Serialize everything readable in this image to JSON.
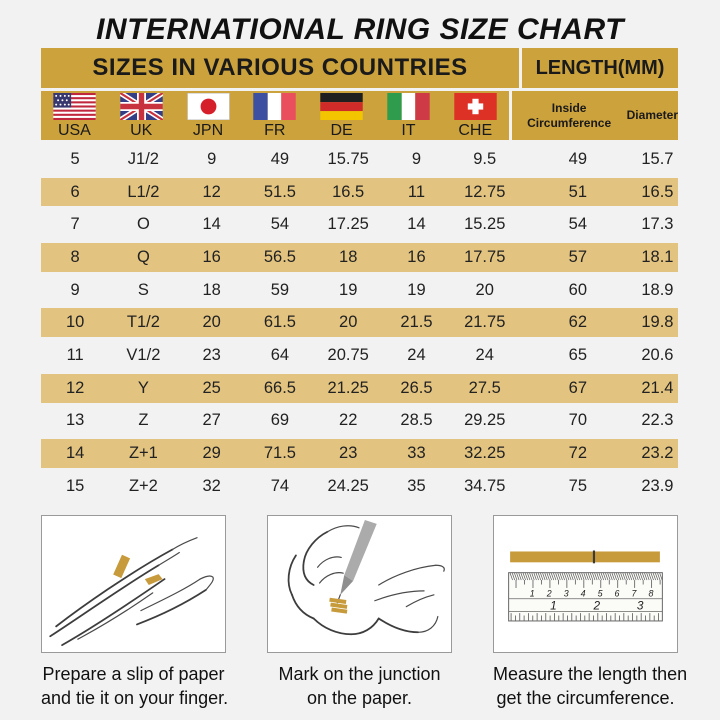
{
  "title": "INTERNATIONAL RING SIZE CHART",
  "colors": {
    "header_gold": "#CCA23D",
    "row_highlight": "#E3C380",
    "background": "#F2F2F2",
    "paper_strip": "#C79B3B"
  },
  "header": {
    "left": "SIZES IN VARIOUS COUNTRIES",
    "right": "LENGTH(MM)"
  },
  "country_columns": [
    {
      "code": "USA",
      "flag": "usa-flag-icon"
    },
    {
      "code": "UK",
      "flag": "uk-flag-icon"
    },
    {
      "code": "JPN",
      "flag": "japan-flag-icon"
    },
    {
      "code": "FR",
      "flag": "france-flag-icon"
    },
    {
      "code": "DE",
      "flag": "germany-flag-icon"
    },
    {
      "code": "IT",
      "flag": "italy-flag-icon"
    },
    {
      "code": "CHE",
      "flag": "switzerland-flag-icon"
    }
  ],
  "length_columns": [
    "Inside Circumference",
    "Diameter"
  ],
  "chart_data": {
    "type": "table",
    "title": "INTERNATIONAL RING SIZE CHART",
    "columns": [
      "USA",
      "UK",
      "JPN",
      "FR",
      "DE",
      "IT",
      "CHE",
      "Inside Circumference (mm)",
      "Diameter (mm)"
    ],
    "rows": [
      [
        "5",
        "J1/2",
        "9",
        "49",
        "15.75",
        "9",
        "9.5",
        "49",
        "15.7"
      ],
      [
        "6",
        "L1/2",
        "12",
        "51.5",
        "16.5",
        "11",
        "12.75",
        "51",
        "16.5"
      ],
      [
        "7",
        "O",
        "14",
        "54",
        "17.25",
        "14",
        "15.25",
        "54",
        "17.3"
      ],
      [
        "8",
        "Q",
        "16",
        "56.5",
        "18",
        "16",
        "17.75",
        "57",
        "18.1"
      ],
      [
        "9",
        "S",
        "18",
        "59",
        "19",
        "19",
        "20",
        "60",
        "18.9"
      ],
      [
        "10",
        "T1/2",
        "20",
        "61.5",
        "20",
        "21.5",
        "21.75",
        "62",
        "19.8"
      ],
      [
        "11",
        "V1/2",
        "23",
        "64",
        "20.75",
        "24",
        "24",
        "65",
        "20.6"
      ],
      [
        "12",
        "Y",
        "25",
        "66.5",
        "21.25",
        "26.5",
        "27.5",
        "67",
        "21.4"
      ],
      [
        "13",
        "Z",
        "27",
        "69",
        "22",
        "28.5",
        "29.25",
        "70",
        "22.3"
      ],
      [
        "14",
        "Z+1",
        "29",
        "71.5",
        "23",
        "33",
        "32.25",
        "72",
        "23.2"
      ],
      [
        "15",
        "Z+2",
        "32",
        "74",
        "24.25",
        "35",
        "34.75",
        "75",
        "23.9"
      ]
    ],
    "highlighted_rows": [
      1,
      3,
      5,
      7,
      9
    ]
  },
  "instructions": [
    {
      "illustration": "hand-with-paper-illustration",
      "caption_line1": "Prepare a slip of paper",
      "caption_line2": "and tie it on your finger."
    },
    {
      "illustration": "mark-junction-illustration",
      "caption_line1": "Mark on the junction",
      "caption_line2": "on the paper."
    },
    {
      "illustration": "ruler-measurement-illustration",
      "caption_line1": "Measure the length then",
      "caption_line2": "get the circumference.",
      "ruler_top_scale": [
        "1",
        "2",
        "3",
        "4",
        "5",
        "6",
        "7",
        "8"
      ],
      "ruler_bottom_scale": [
        "1",
        "2",
        "3"
      ]
    }
  ]
}
